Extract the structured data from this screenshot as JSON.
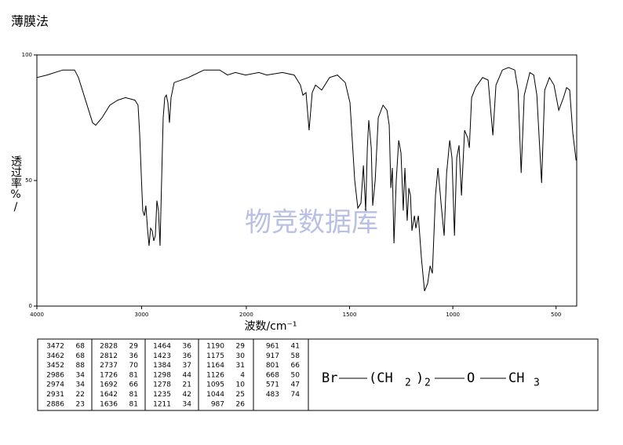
{
  "chart_data": {
    "type": "line",
    "title": "薄膜法",
    "xlabel": "波数/cm⁻¹",
    "ylabel": "透过率%/",
    "watermark": "物竞数据库",
    "xlim": [
      4000,
      400
    ],
    "xbreak": 2000,
    "xticks": [
      4000,
      3000,
      2000,
      1500,
      1000,
      500
    ],
    "ylim": [
      0,
      100
    ],
    "yticks": [
      0,
      50,
      100
    ],
    "series": [
      {
        "color": "#000000",
        "x": [
          4000,
          3903,
          3753,
          3640,
          3603,
          3528,
          3468,
          3438,
          3378,
          3303,
          3228,
          3154,
          3064,
          3034,
          3019,
          3004,
          2989,
          2974,
          2959,
          2944,
          2929,
          2914,
          2899,
          2884,
          2869,
          2854,
          2839,
          2824,
          2809,
          2794,
          2779,
          2764,
          2749,
          2734,
          2719,
          2689,
          2554,
          2404,
          2254,
          2180,
          2105,
          2007,
          1939,
          1901,
          1825,
          1768,
          1738,
          1726,
          1711,
          1696,
          1681,
          1665,
          1635,
          1597,
          1559,
          1521,
          1498,
          1475,
          1460,
          1445,
          1433,
          1422,
          1414,
          1407,
          1395,
          1388,
          1376,
          1361,
          1338,
          1319,
          1308,
          1300,
          1293,
          1285,
          1274,
          1262,
          1251,
          1240,
          1232,
          1221,
          1213,
          1205,
          1198,
          1186,
          1179,
          1167,
          1152,
          1137,
          1122,
          1110,
          1099,
          1084,
          1072,
          1057,
          1042,
          1030,
          1015,
          1004,
          992,
          981,
          970,
          958,
          943,
          928,
          920,
          909,
          890,
          856,
          829,
          806,
          791,
          760,
          730,
          700,
          684,
          669,
          654,
          627,
          608,
          593,
          570,
          555,
          532,
          510,
          487,
          464,
          449,
          434,
          419,
          403
        ],
        "values": [
          91,
          92,
          94,
          94,
          91,
          81,
          73,
          72,
          75,
          80,
          82,
          83,
          82,
          80,
          69,
          53,
          38,
          36,
          40,
          31,
          24,
          31,
          30,
          26,
          28,
          42,
          38,
          24,
          50,
          75,
          83,
          84,
          81,
          73,
          83,
          89,
          91,
          94,
          94,
          92,
          93,
          92,
          93,
          92,
          93,
          92,
          88,
          84,
          85,
          70,
          85,
          88,
          86,
          91,
          92,
          89,
          81,
          50,
          39,
          41,
          56,
          38,
          63,
          74,
          63,
          40,
          50,
          75,
          80,
          78,
          72,
          47,
          55,
          25,
          50,
          66,
          61,
          38,
          55,
          34,
          47,
          44,
          30,
          36,
          31,
          36,
          19,
          6,
          9,
          16,
          13,
          44,
          55,
          41,
          28,
          53,
          66,
          59,
          28,
          59,
          64,
          44,
          70,
          67,
          63,
          83,
          87,
          91,
          90,
          68,
          88,
          94,
          95,
          94,
          86,
          53,
          84,
          93,
          92,
          84,
          49,
          86,
          91,
          88,
          78,
          83,
          87,
          86,
          69,
          58
        ]
      }
    ]
  },
  "peak_table": [
    [
      [
        "3472",
        "68"
      ],
      [
        "3462",
        "68"
      ],
      [
        "3452",
        "88"
      ],
      [
        "2986",
        "34"
      ],
      [
        "2974",
        "34"
      ],
      [
        "2931",
        "22"
      ],
      [
        "2886",
        "23"
      ]
    ],
    [
      [
        "2828",
        "29"
      ],
      [
        "2812",
        "36"
      ],
      [
        "2737",
        "70"
      ],
      [
        "1726",
        "81"
      ],
      [
        "1692",
        "66"
      ],
      [
        "1642",
        "81"
      ],
      [
        "1636",
        "81"
      ]
    ],
    [
      [
        "1464",
        "36"
      ],
      [
        "1423",
        "36"
      ],
      [
        "1384",
        "37"
      ],
      [
        "1298",
        "44"
      ],
      [
        "1278",
        "21"
      ],
      [
        "1235",
        "42"
      ],
      [
        "1211",
        "34"
      ]
    ],
    [
      [
        "1190",
        "29"
      ],
      [
        "1175",
        "30"
      ],
      [
        "1164",
        "31"
      ],
      [
        "1126",
        "4"
      ],
      [
        "1095",
        "10"
      ],
      [
        "1044",
        "25"
      ],
      [
        "987",
        "26"
      ]
    ],
    [
      [
        "961",
        "41"
      ],
      [
        "917",
        "58"
      ],
      [
        "801",
        "66"
      ],
      [
        "668",
        "50"
      ],
      [
        "571",
        "47"
      ],
      [
        "483",
        "74"
      ]
    ]
  ],
  "formula": [
    "Br",
    "(CH",
    "2",
    ")",
    "2",
    "O",
    "CH",
    "3"
  ]
}
